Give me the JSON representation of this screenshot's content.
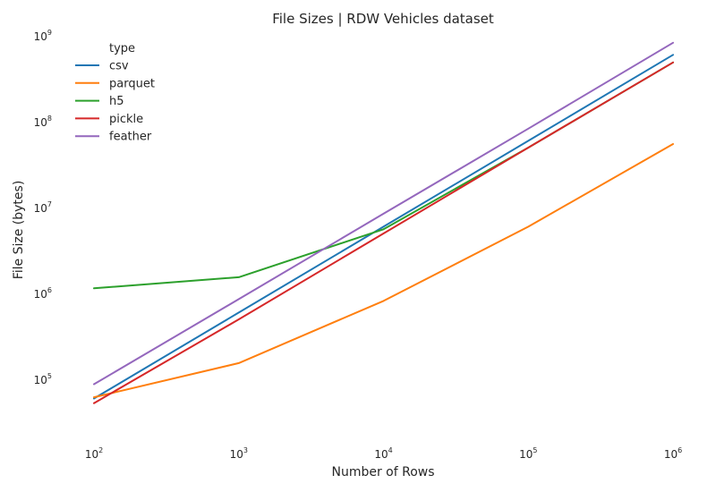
{
  "chart_data": {
    "type": "line",
    "title": "File Sizes | RDW Vehicles dataset",
    "xlabel": "Number of Rows",
    "ylabel": "File Size (bytes)",
    "xscale": "log",
    "yscale": "log",
    "xlim": [
      100,
      1000000
    ],
    "ylim": [
      25000,
      1000000000
    ],
    "x_ticks": [
      {
        "base": "10",
        "exp": "2",
        "value": 100
      },
      {
        "base": "10",
        "exp": "3",
        "value": 1000
      },
      {
        "base": "10",
        "exp": "4",
        "value": 10000
      },
      {
        "base": "10",
        "exp": "5",
        "value": 100000
      },
      {
        "base": "10",
        "exp": "6",
        "value": 1000000
      }
    ],
    "y_ticks": [
      {
        "base": "10",
        "exp": "5",
        "value": 100000
      },
      {
        "base": "10",
        "exp": "6",
        "value": 1000000
      },
      {
        "base": "10",
        "exp": "7",
        "value": 10000000
      },
      {
        "base": "10",
        "exp": "8",
        "value": 100000000
      },
      {
        "base": "10",
        "exp": "9",
        "value": 1000000000
      }
    ],
    "grid": false,
    "legend_title": "type",
    "legend_position": "top-left",
    "x": [
      100,
      1000,
      10000,
      100000,
      1000000
    ],
    "series": [
      {
        "name": "csv",
        "color": "#1f77b4",
        "values": [
          60000,
          600000,
          6000000,
          60000000,
          600000000
        ]
      },
      {
        "name": "parquet",
        "color": "#ff7f0e",
        "values": [
          62000,
          155000,
          820000,
          6000000,
          55000000
        ]
      },
      {
        "name": "h5",
        "color": "#2ca02c",
        "values": [
          1150000,
          1550000,
          5600000,
          50000000,
          490000000
        ]
      },
      {
        "name": "pickle",
        "color": "#d62728",
        "values": [
          53000,
          500000,
          5000000,
          50000000,
          490000000
        ]
      },
      {
        "name": "feather",
        "color": "#9467bd",
        "values": [
          88000,
          860000,
          8500000,
          83000000,
          830000000
        ]
      }
    ]
  }
}
